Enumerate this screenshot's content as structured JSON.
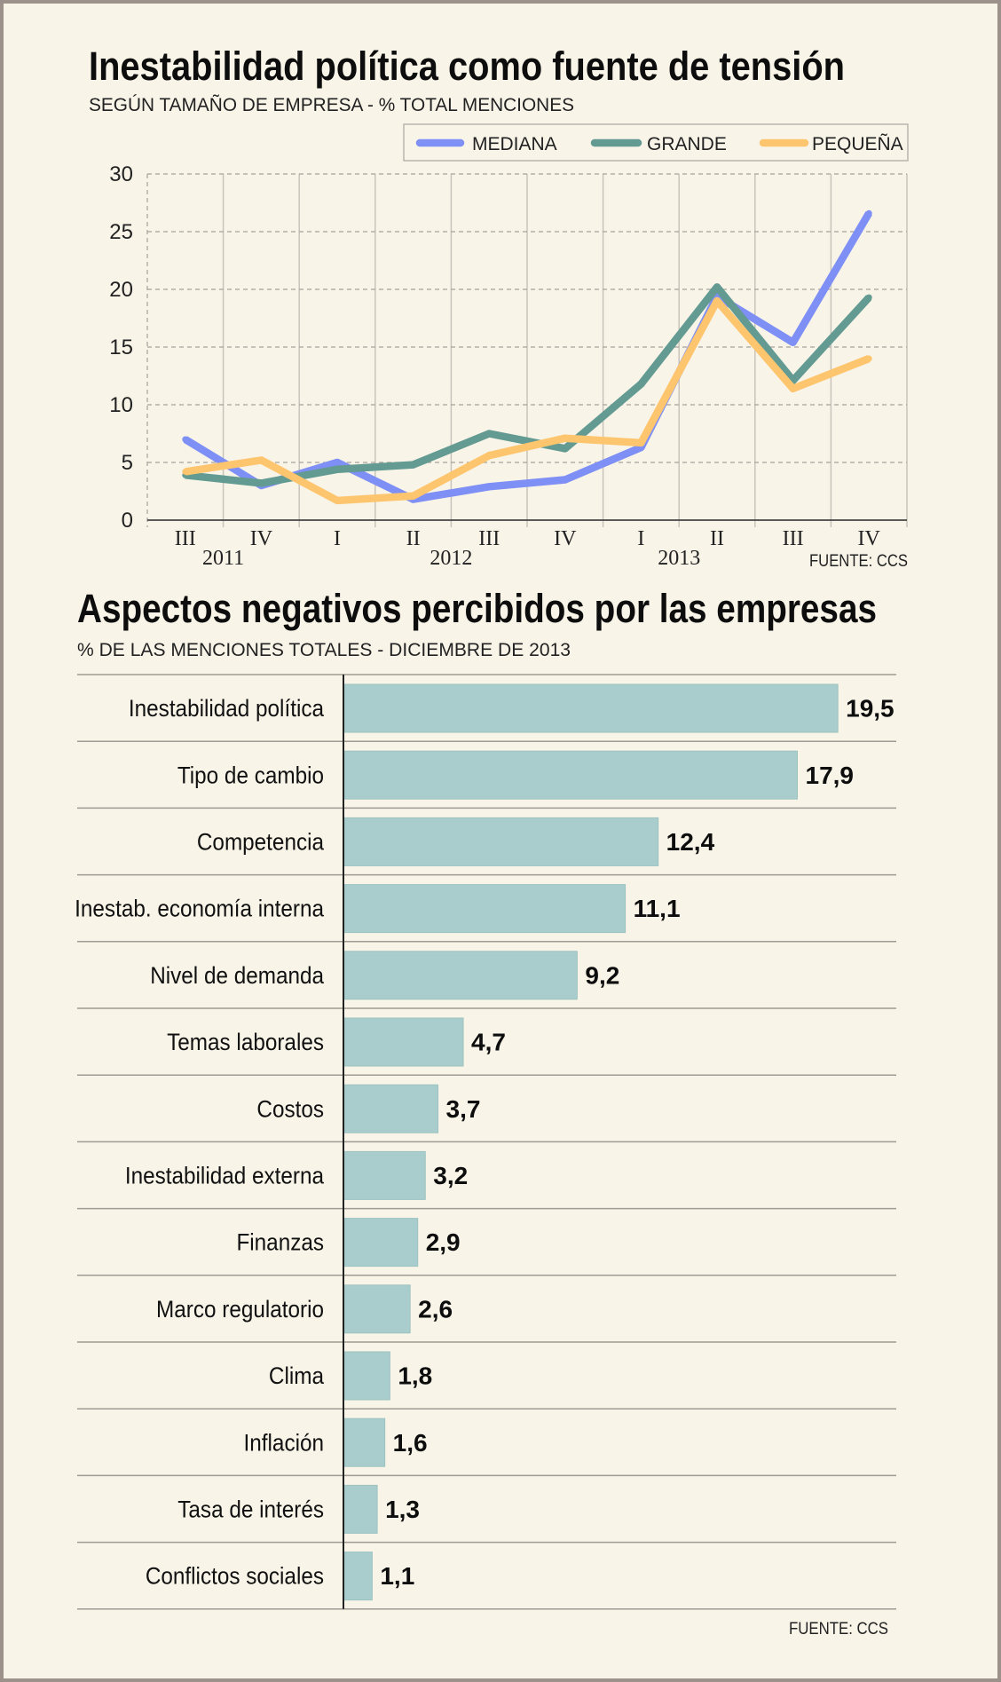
{
  "chart_data": [
    {
      "type": "line",
      "title": "Inestabilidad política como fuente de tensión",
      "subtitle": "SEGÚN TAMAÑO DE EMPRESA - % TOTAL MENCIONES",
      "categories": [
        "III",
        "IV",
        "I",
        "II",
        "III",
        "IV",
        "I",
        "II",
        "III",
        "IV"
      ],
      "year_labels": [
        {
          "label": "2011",
          "position": 0.5
        },
        {
          "label": "2012",
          "position": 3.5
        },
        {
          "label": "2013",
          "position": 6.5
        }
      ],
      "xlabel": "",
      "ylabel": "",
      "ylim": [
        0,
        30
      ],
      "yticks": [
        0,
        5,
        10,
        15,
        20,
        25,
        30
      ],
      "grid": true,
      "legend": "top-right",
      "series": [
        {
          "name": "MEDIANA",
          "color": "#7e8ff5",
          "values": [
            7.0,
            3.0,
            5.0,
            1.8,
            2.9,
            3.5,
            6.3,
            19.4,
            15.4,
            26.6
          ]
        },
        {
          "name": "GRANDE",
          "color": "#639a92",
          "values": [
            3.9,
            3.2,
            4.4,
            4.8,
            7.5,
            6.2,
            11.8,
            20.2,
            12.1,
            19.3
          ]
        },
        {
          "name": "PEQUEÑA",
          "color": "#fec56f",
          "values": [
            4.2,
            5.2,
            1.7,
            2.1,
            5.6,
            7.1,
            6.7,
            19.0,
            11.4,
            14.0
          ]
        }
      ],
      "source": "FUENTE: CCS"
    },
    {
      "type": "bar",
      "orientation": "horizontal",
      "title": "Aspectos negativos percibidos por las empresas",
      "subtitle": "% DE LAS MENCIONES TOTALES - DICIEMBRE DE 2013",
      "categories": [
        "Inestabilidad política",
        "Tipo de cambio",
        "Competencia",
        "Inestab. economía interna",
        "Nivel de demanda",
        "Temas laborales",
        "Costos",
        "Inestabilidad externa",
        "Finanzas",
        "Marco regulatorio",
        "Clima",
        "Inflación",
        "Tasa de interés",
        "Conflictos sociales"
      ],
      "values": [
        19.5,
        17.9,
        12.4,
        11.1,
        9.2,
        4.7,
        3.7,
        3.2,
        2.9,
        2.6,
        1.8,
        1.6,
        1.3,
        1.1
      ],
      "value_labels": [
        "19,5",
        "17,9",
        "12,4",
        "11,1",
        "9,2",
        "4,7",
        "3,7",
        "3,2",
        "2,9",
        "2,6",
        "1,8",
        "1,6",
        "1,3",
        "1,1"
      ],
      "bar_color": "#a9cdcc",
      "xlim": [
        0,
        20
      ],
      "source": "FUENTE: CCS"
    }
  ]
}
